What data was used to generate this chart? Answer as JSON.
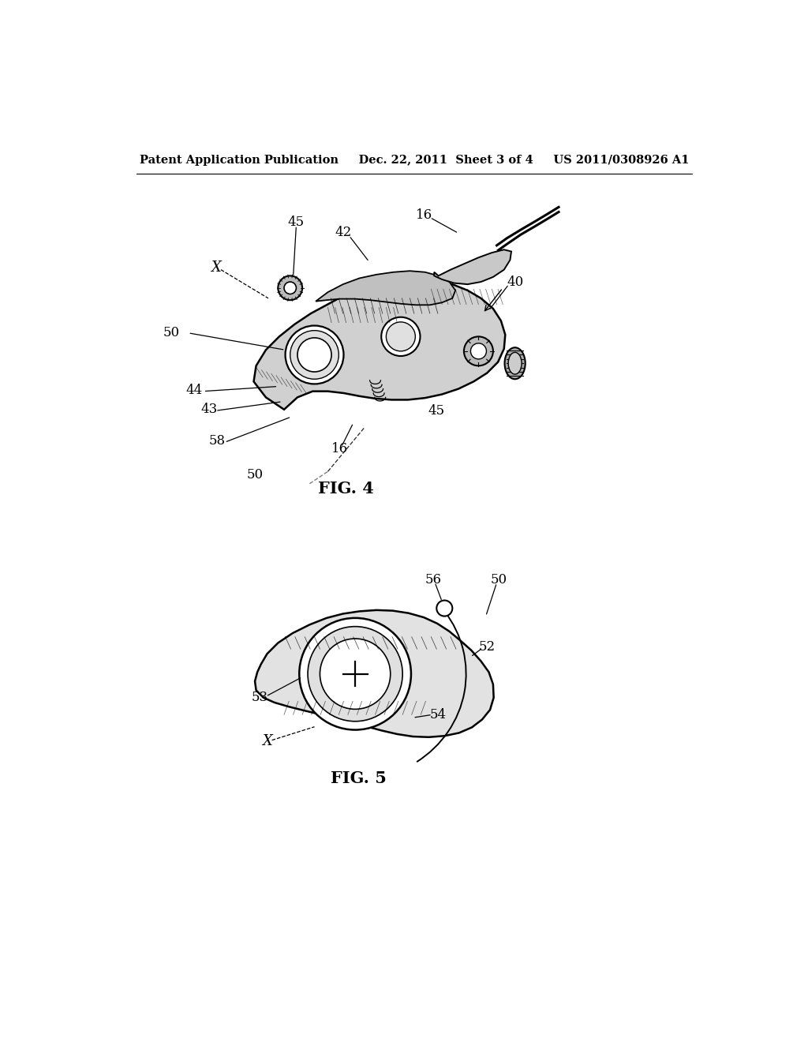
{
  "bg_color": "#ffffff",
  "header_text": "Patent Application Publication     Dec. 22, 2011  Sheet 3 of 4     US 2011/0308926 A1",
  "fig4_label": "FIG. 4",
  "fig5_label": "FIG. 5"
}
